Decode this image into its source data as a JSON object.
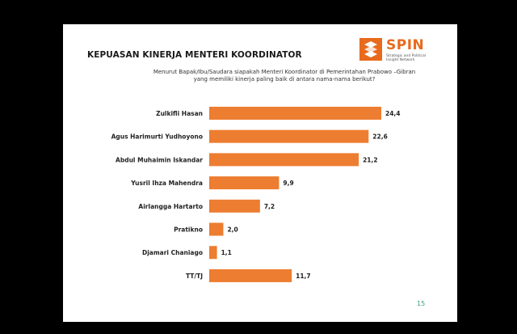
{
  "slide": {
    "title": "KEPUASAN KINERJA MENTERI KOORDINATOR",
    "question_line1": "Menurut Bapak/Ibu/Saudara siapakah Menteri Koordinator di Pemerintahan Prabowo –Gibran",
    "question_line2": "yang memiliki kinerja paling baik di antara nama-nama berikut?",
    "page_number": "15"
  },
  "logo": {
    "name": "SPIN",
    "tagline": "Strategic and Political Insight Network",
    "color": "#e86a1d"
  },
  "chart_data": {
    "type": "bar",
    "orientation": "horizontal",
    "categories": [
      "Zulkifli Hasan",
      "Agus Harimurti Yudhoyono",
      "Abdul Muhaimin Iskandar",
      "Yusril Ihza Mahendra",
      "Airlangga Hartarto",
      "Pratikno",
      "Djamari Chaniago",
      "TT/TJ"
    ],
    "values": [
      24.4,
      22.6,
      21.2,
      9.9,
      7.2,
      2.0,
      1.1,
      11.7
    ],
    "value_labels": [
      "24,4",
      "22,6",
      "21,2",
      "9,9",
      "7,2",
      "2,0",
      "1,1",
      "11,7"
    ],
    "bar_color": "#ed7d31",
    "xlim": [
      0,
      24.4
    ]
  }
}
